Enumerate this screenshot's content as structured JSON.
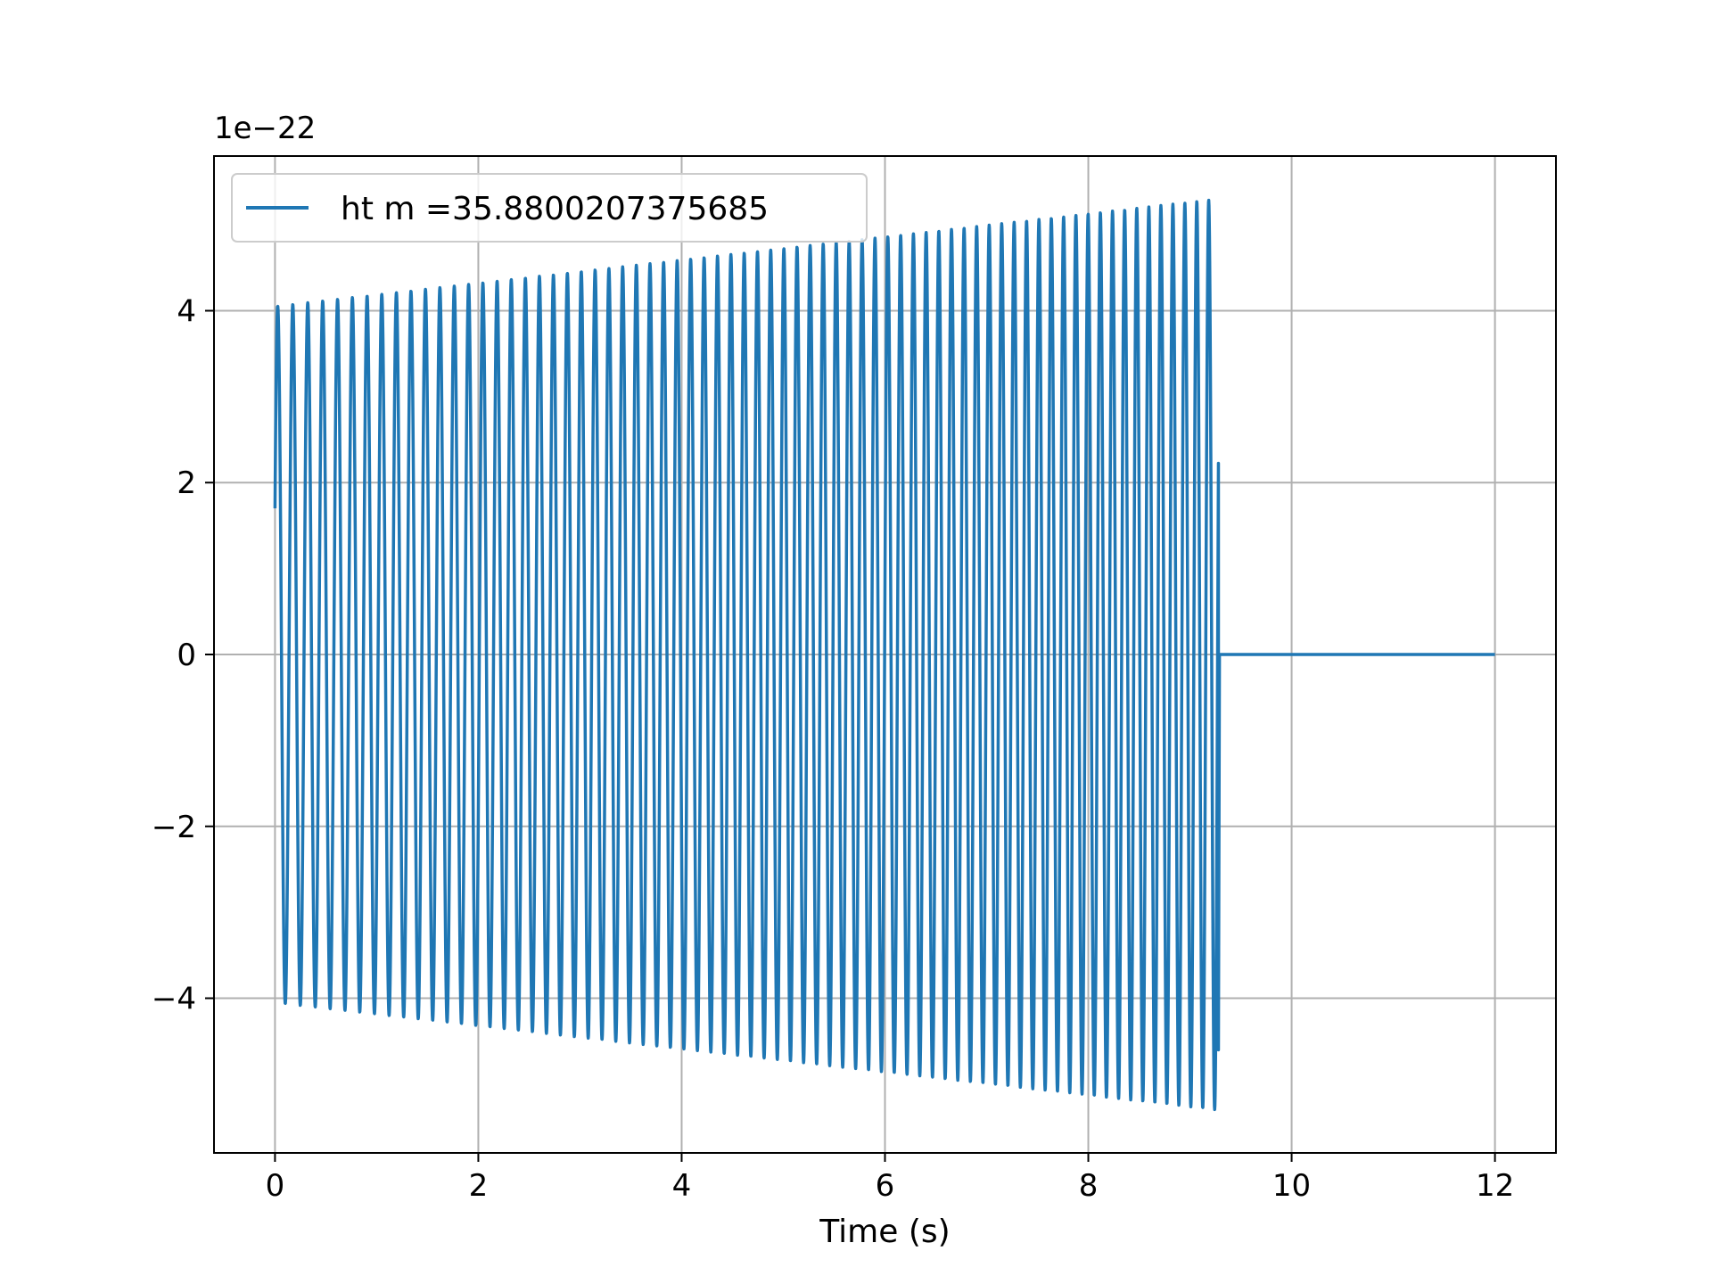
{
  "chart_data": {
    "type": "line",
    "title": "",
    "xlabel": "Time (s)",
    "ylabel": "",
    "offset_text": "1e−22",
    "xlim": [
      -0.6,
      12.6
    ],
    "ylim": [
      -5.8,
      5.8
    ],
    "x_ticks": [
      0,
      2,
      4,
      6,
      8,
      10,
      12
    ],
    "x_tick_labels": [
      "0",
      "2",
      "4",
      "6",
      "8",
      "10",
      "12"
    ],
    "y_ticks": [
      -4,
      -2,
      0,
      2,
      4
    ],
    "y_tick_labels": [
      "−4",
      "−2",
      "0",
      "2",
      "4"
    ],
    "grid": true,
    "legend_position": "top-left",
    "series": [
      {
        "name": "ht m =35.8800207375685",
        "color": "#1f77b4",
        "signal": {
          "description": "oscillating strain waveform, amplitude in units of 1e-22",
          "t_start": 0.0,
          "t_end_oscillation": 9.28,
          "t_end": 12.0,
          "start_value": 1.7,
          "peak_start": 4.05,
          "peak_end": 5.3,
          "trough_start": -4.05,
          "trough_end": -5.3,
          "final_value": -4.6,
          "cycles": 71,
          "after_oscillation_value": 0.0
        }
      }
    ]
  }
}
